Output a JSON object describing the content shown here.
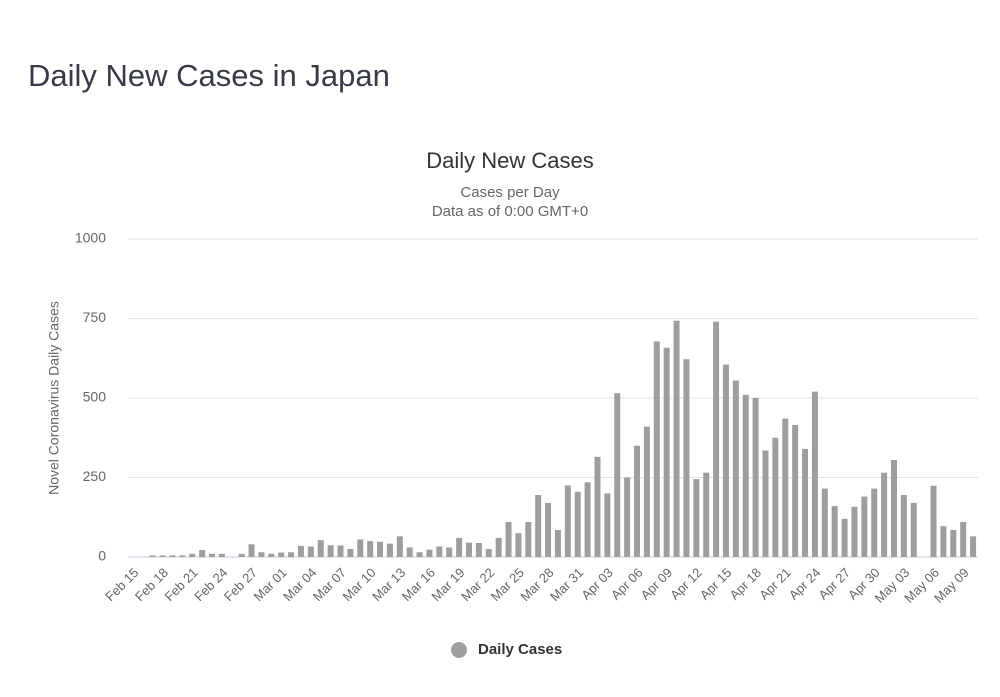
{
  "page_title": "Daily New Cases in Japan",
  "chart_data": {
    "type": "bar",
    "title": "Daily New Cases",
    "subtitle": [
      "Cases per Day",
      "Data as of 0:00 GMT+0"
    ],
    "y_label": "Novel Coronavirus Daily Cases",
    "categories": [
      "Feb 15",
      null,
      null,
      "Feb 18",
      null,
      null,
      "Feb 21",
      null,
      null,
      "Feb 24",
      null,
      null,
      "Feb 27",
      null,
      null,
      "Mar 01",
      null,
      null,
      "Mar 04",
      null,
      null,
      "Mar 07",
      null,
      null,
      "Mar 10",
      null,
      null,
      "Mar 13",
      null,
      null,
      "Mar 16",
      null,
      null,
      "Mar 19",
      null,
      null,
      "Mar 22",
      null,
      null,
      "Mar 25",
      null,
      null,
      "Mar 28",
      null,
      null,
      "Mar 31",
      null,
      null,
      "Apr 03",
      null,
      null,
      "Apr 06",
      null,
      null,
      "Apr 09",
      null,
      null,
      "Apr 12",
      null,
      null,
      "Apr 15",
      null,
      null,
      "Apr 18",
      null,
      null,
      "Apr 21",
      null,
      null,
      "Apr 24",
      null,
      null,
      "Apr 27",
      null,
      null,
      "Apr 30",
      null,
      null,
      "May 03",
      null,
      null,
      "May 06",
      null,
      null,
      "May 09",
      null
    ],
    "series": [
      {
        "name": "Daily Cases",
        "color": "#9e9e9e",
        "values": [
          0,
          0,
          5,
          5,
          5,
          5,
          10,
          22,
          10,
          10,
          0,
          10,
          40,
          15,
          10,
          14,
          15,
          35,
          33,
          53,
          37,
          36,
          25,
          55,
          50,
          48,
          42,
          65,
          30,
          15,
          23,
          33,
          30,
          60,
          45,
          44,
          25,
          60,
          110,
          75,
          110,
          195,
          170,
          85,
          225,
          205,
          235,
          315,
          200,
          515,
          250,
          350,
          410,
          678,
          658,
          743,
          622,
          245,
          265,
          740,
          605,
          555,
          510,
          500,
          335,
          375,
          435,
          415,
          340,
          520,
          215,
          160,
          120,
          158,
          190,
          215,
          265,
          305,
          195,
          170,
          0,
          224,
          97,
          85,
          110,
          65
        ]
      }
    ],
    "ylim": [
      0,
      1000
    ],
    "yticks": [
      0,
      250,
      500,
      750,
      1000
    ],
    "grid": true
  }
}
